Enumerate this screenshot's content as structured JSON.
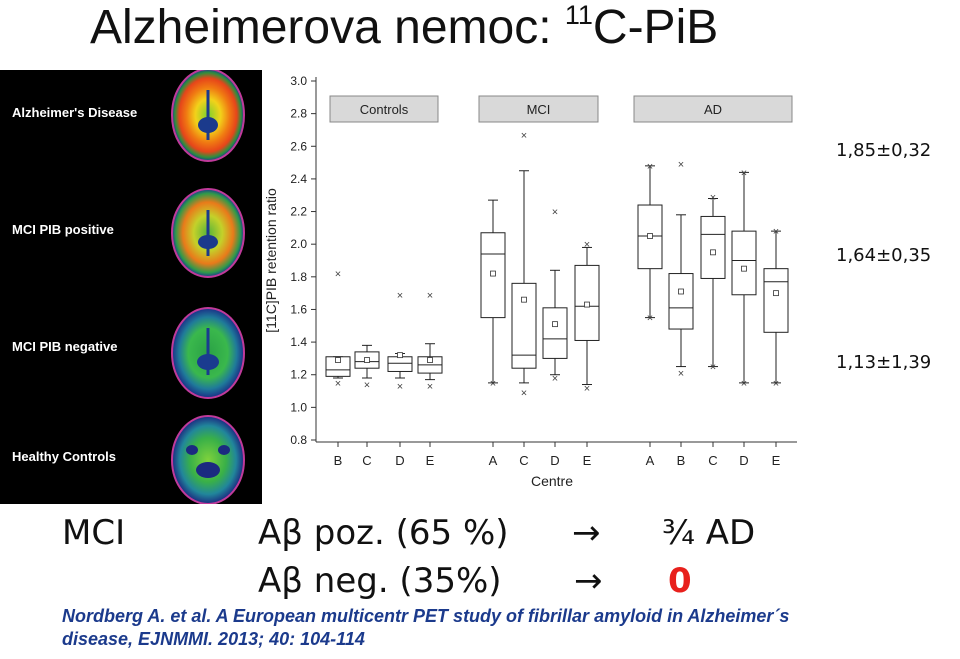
{
  "title": {
    "main": "Alzheimerova nemoc: ",
    "sup": "11",
    "tail": "C-PiB"
  },
  "pet_labels": [
    "Alzheimer's Disease",
    "MCI PIB positive",
    "MCI PIB negative",
    "Healthy Controls"
  ],
  "stats": [
    "1,85±0,32",
    "1,64±0,35",
    "1,13±1,39"
  ],
  "text": {
    "mci": "MCI",
    "pos": "Aβ poz. (65 %)",
    "arrow": "→",
    "pos_result": "¾ AD",
    "neg": "Aβ neg. (35%)",
    "neg_result": "0"
  },
  "reference": [
    "Nordberg A. et al. A European multicentr PET study of fibrillar amyloid in Alzheimer´s",
    "disease, EJNMMI. 2013; 40: 104-114"
  ],
  "chart_data": {
    "type": "box",
    "ylabel": "[11C]PIB retention ratio",
    "xlabel": "Centre",
    "ylim": [
      0.8,
      3.0
    ],
    "yticks": [
      "0.8",
      "1.0",
      "1.2",
      "1.4",
      "1.6",
      "1.8",
      "2.0",
      "2.2",
      "2.4",
      "2.6",
      "2.8",
      "3.0"
    ],
    "groups": [
      {
        "name": "Controls",
        "boxes": [
          {
            "centre": "B",
            "wlo": 1.18,
            "q1": 1.19,
            "med": 1.23,
            "q3": 1.31,
            "whi": 1.31,
            "mean": 1.29,
            "outliers": [
              1.82,
              1.15
            ]
          },
          {
            "centre": "C",
            "wlo": 1.18,
            "q1": 1.24,
            "med": 1.28,
            "q3": 1.34,
            "whi": 1.38,
            "mean": 1.29,
            "outliers": [
              1.14
            ]
          },
          {
            "centre": "D",
            "wlo": 1.18,
            "q1": 1.22,
            "med": 1.27,
            "q3": 1.31,
            "whi": 1.33,
            "mean": 1.32,
            "outliers": [
              1.69,
              1.13
            ]
          },
          {
            "centre": "E",
            "wlo": 1.17,
            "q1": 1.21,
            "med": 1.26,
            "q3": 1.31,
            "whi": 1.39,
            "mean": 1.29,
            "outliers": [
              1.69,
              1.13
            ]
          }
        ]
      },
      {
        "name": "MCI",
        "boxes": [
          {
            "centre": "A",
            "wlo": 1.15,
            "q1": 1.55,
            "med": 1.94,
            "q3": 2.07,
            "whi": 2.27,
            "mean": 1.82,
            "outliers": [
              1.15
            ]
          },
          {
            "centre": "C",
            "wlo": 1.15,
            "q1": 1.24,
            "med": 1.32,
            "q3": 1.76,
            "whi": 2.45,
            "mean": 1.66,
            "outliers": [
              2.67,
              1.09
            ]
          },
          {
            "centre": "D",
            "wlo": 1.2,
            "q1": 1.3,
            "med": 1.42,
            "q3": 1.61,
            "whi": 1.84,
            "mean": 1.51,
            "outliers": [
              2.2,
              1.18
            ]
          },
          {
            "centre": "E",
            "wlo": 1.14,
            "q1": 1.41,
            "med": 1.62,
            "q3": 1.87,
            "whi": 1.98,
            "mean": 1.63,
            "outliers": [
              2.0,
              1.12
            ]
          }
        ]
      },
      {
        "name": "AD",
        "boxes": [
          {
            "centre": "A",
            "wlo": 1.55,
            "q1": 1.85,
            "med": 2.05,
            "q3": 2.24,
            "whi": 2.48,
            "mean": 2.05,
            "outliers": [
              2.48,
              1.55
            ]
          },
          {
            "centre": "B",
            "wlo": 1.25,
            "q1": 1.48,
            "med": 1.61,
            "q3": 1.82,
            "whi": 2.18,
            "mean": 1.71,
            "outliers": [
              2.49,
              1.21
            ]
          },
          {
            "centre": "C",
            "wlo": 1.25,
            "q1": 1.79,
            "med": 2.06,
            "q3": 2.17,
            "whi": 2.28,
            "mean": 1.95,
            "outliers": [
              2.29,
              1.25
            ]
          },
          {
            "centre": "D",
            "wlo": 1.15,
            "q1": 1.69,
            "med": 1.9,
            "q3": 2.08,
            "whi": 2.44,
            "mean": 1.85,
            "outliers": [
              2.44,
              1.15
            ]
          },
          {
            "centre": "E",
            "wlo": 1.15,
            "q1": 1.46,
            "med": 1.77,
            "q3": 1.85,
            "whi": 2.08,
            "mean": 1.7,
            "outliers": [
              2.08,
              1.15
            ]
          }
        ]
      }
    ],
    "grid": false
  }
}
